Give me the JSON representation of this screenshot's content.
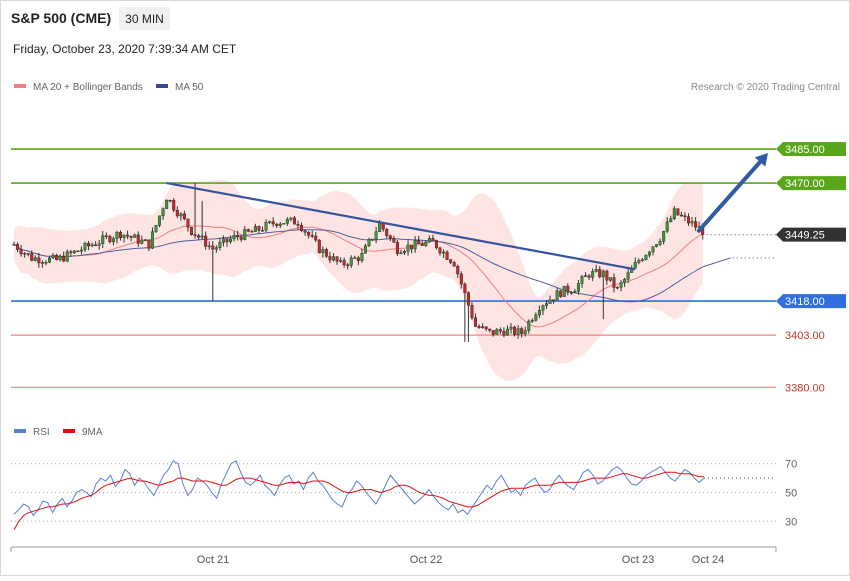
{
  "header": {
    "instrument": "S&P 500 (CME)",
    "timeframe": "30 MIN",
    "datetime": "Friday, October 23, 2020 7:39:34 AM CET",
    "credit": "Research © 2020 Trading Central"
  },
  "legend_main": [
    {
      "label": "MA 20 + Bollinger Bands",
      "color": "#f08080"
    },
    {
      "label": "MA 50",
      "color": "#2e4d8f"
    }
  ],
  "legend_rsi": [
    {
      "label": "RSI",
      "color": "#5b7fd6"
    },
    {
      "label": "9MA",
      "color": "#e01010"
    }
  ],
  "chart_data": {
    "type": "candlestick",
    "price_range": [
      3370,
      3500
    ],
    "x_labels": [
      "Oct 21",
      "Oct 22",
      "Oct 23",
      "Oct 24"
    ],
    "current_price": "3449.25",
    "levels": [
      {
        "label": "3485.00",
        "value": 3485.0,
        "kind": "resistance",
        "color": "#5aa61a"
      },
      {
        "label": "3470.00",
        "value": 3470.0,
        "kind": "resistance",
        "color": "#5aa61a"
      },
      {
        "label": "3418.00",
        "value": 3418.0,
        "kind": "pivot",
        "color": "#2f6fe0"
      },
      {
        "label": "3403.00",
        "value": 3403.0,
        "kind": "support",
        "color": "#f08080"
      },
      {
        "label": "3380.00",
        "value": 3380.0,
        "kind": "support",
        "color": "#f08080"
      }
    ],
    "trendline": {
      "from": {
        "bar": 43,
        "price": 3470
      },
      "to": {
        "bar": 175,
        "price": 3432
      }
    },
    "forecast_arrow": {
      "from": {
        "bar": 189,
        "price": 3449
      },
      "to": {
        "price": 3485
      }
    },
    "rsi": {
      "range": [
        17,
        83
      ],
      "ticks": [
        30,
        50,
        70
      ],
      "rsi_values": [
        35,
        38,
        42,
        40,
        34,
        38,
        44,
        43,
        36,
        42,
        46,
        40,
        44,
        50,
        52,
        50,
        47,
        56,
        60,
        58,
        62,
        54,
        58,
        66,
        63,
        55,
        60,
        57,
        52,
        48,
        55,
        62,
        66,
        72,
        70,
        56,
        48,
        52,
        60,
        58,
        55,
        50,
        46,
        56,
        63,
        70,
        72,
        64,
        57,
        55,
        58,
        62,
        55,
        52,
        48,
        55,
        60,
        62,
        56,
        58,
        52,
        60,
        64,
        58,
        55,
        50,
        45,
        42,
        40,
        48,
        52,
        58,
        55,
        50,
        46,
        42,
        48,
        55,
        62,
        58,
        54,
        50,
        46,
        42,
        45,
        48,
        52,
        47,
        43,
        40,
        38,
        42,
        36,
        38,
        35,
        40,
        45,
        50,
        55,
        52,
        58,
        62,
        56,
        50,
        52,
        48,
        55,
        58,
        60,
        54,
        50,
        52,
        58,
        62,
        57,
        54,
        52,
        58,
        64,
        66,
        62,
        56,
        58,
        62,
        66,
        68,
        65,
        60,
        56,
        55,
        58,
        62,
        64,
        66,
        68,
        64,
        60,
        58,
        62,
        66,
        64,
        60,
        57,
        60
      ],
      "ma_values": [
        24,
        30,
        34,
        36,
        37,
        38,
        39,
        40,
        40,
        41,
        42,
        42,
        43,
        44,
        46,
        47,
        48,
        50,
        53,
        55,
        56,
        57,
        58,
        59,
        60,
        59,
        58,
        58,
        57,
        56,
        55,
        56,
        57,
        58,
        60,
        60,
        59,
        58,
        58,
        58,
        58,
        57,
        56,
        55,
        55,
        57,
        59,
        60,
        60,
        60,
        59,
        58,
        57,
        56,
        55,
        55,
        56,
        57,
        57,
        57,
        56,
        57,
        58,
        58,
        58,
        57,
        55,
        53,
        51,
        50,
        50,
        51,
        52,
        52,
        52,
        51,
        50,
        51,
        52,
        54,
        55,
        55,
        54,
        52,
        50,
        49,
        48,
        48,
        47,
        46,
        44,
        43,
        42,
        41,
        40,
        40,
        41,
        43,
        45,
        47,
        49,
        51,
        52,
        53,
        53,
        53,
        53,
        54,
        55,
        55,
        55,
        55,
        56,
        57,
        57,
        57,
        57,
        57,
        58,
        59,
        60,
        60,
        60,
        60,
        61,
        62,
        63,
        63,
        62,
        61,
        60,
        60,
        61,
        62,
        63,
        64,
        64,
        64,
        63,
        63,
        63,
        62,
        61,
        61
      ]
    }
  }
}
